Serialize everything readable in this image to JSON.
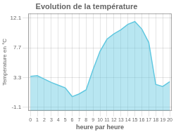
{
  "chart_data": {
    "type": "area",
    "title": "Evolution de la température",
    "xlabel": "heure par heure",
    "ylabel": "Température en °C",
    "x": [
      0,
      1,
      2,
      3,
      4,
      5,
      6,
      7,
      8,
      9,
      10,
      11,
      12,
      13,
      14,
      15,
      16,
      17,
      18,
      19,
      20
    ],
    "values": [
      3.5,
      3.6,
      3.1,
      2.6,
      2.2,
      1.8,
      0.5,
      0.9,
      1.5,
      4.5,
      7.2,
      9.0,
      9.8,
      10.4,
      11.2,
      11.6,
      10.5,
      8.5,
      2.3,
      2.0,
      2.7
    ],
    "color": "#62c8e0",
    "xlim": [
      -0.3,
      20.3
    ],
    "xticks": [
      0,
      1,
      2,
      3,
      4,
      5,
      6,
      7,
      8,
      9,
      10,
      11,
      12,
      13,
      14,
      15,
      16,
      17,
      18,
      19,
      20
    ],
    "ylim": [
      -1.6,
      12.8
    ],
    "yticks": [
      -1.1,
      3.3,
      7.7,
      12.1
    ],
    "grid": true
  }
}
